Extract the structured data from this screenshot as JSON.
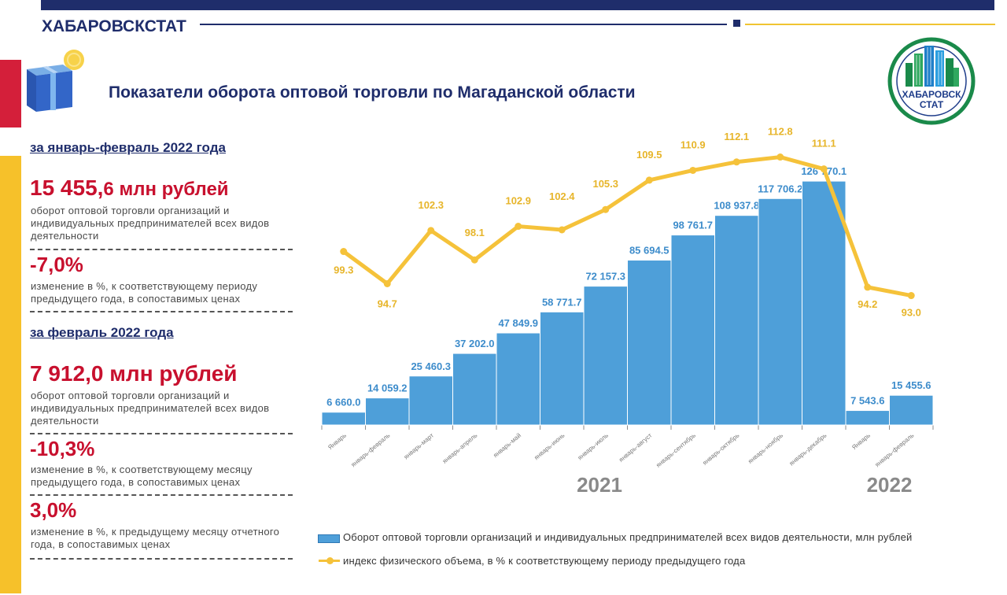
{
  "header": {
    "brand": "ХАБАРОВСКСТАТ",
    "title": "Показатели оборота оптовой торговли по Магаданской области",
    "logo_text_1": "ХАБАРОВСК",
    "logo_text_2": "СТАТ"
  },
  "left_panel": {
    "period1_label": "за январь-февраль 2022 года",
    "period1_value_main": "15 455,",
    "period1_value_tail": "6 млн рублей",
    "period1_desc": "оборот оптовой торговли организаций и индивидуальных предпринимателей всех видов деятельности",
    "period1_change": "-7,0%",
    "period1_change_desc": "изменение в %, к соответствующему периоду предыдущего года, в сопоставимых ценах",
    "period2_label": "за февраль 2022 года",
    "period2_value_main": "7 912,",
    "period2_value_tail": "0 млн рублей",
    "period2_desc": "оборот оптовой торговли организаций и индивидуальных предпринимателей всех видов деятельности",
    "period2_change": "-10,3%",
    "period2_change_desc": "изменение в %, к соответствующему месяцу предыдущего года, в сопоставимых ценах",
    "period2_change2": "3,0%",
    "period2_change2_desc": "изменение в %, к предыдущему месяцу отчетного года, в сопоставимых ценах"
  },
  "chart_data": {
    "type": "bar",
    "categories": [
      "Январь",
      "январь-февраль",
      "январь-март",
      "январь-апрель",
      "январь-май",
      "январь-июнь",
      "январь-июль",
      "январь-август",
      "январь-сентябрь",
      "январь-октябрь",
      "январь-ноябрь",
      "январь-декабрь",
      "Январь",
      "январь-февраль"
    ],
    "year_groups": [
      {
        "label": "2021",
        "count": 12
      },
      {
        "label": "2022",
        "count": 2
      }
    ],
    "series": [
      {
        "name": "Оборот оптовой торговли организаций и индивидуальных предпринимателей всех видов деятельности, млн рублей",
        "kind": "bar",
        "color": "#4e9fd9",
        "values": [
          6660.0,
          14059.2,
          25460.3,
          37202.0,
          47849.9,
          58771.7,
          72157.3,
          85694.5,
          98761.7,
          108937.8,
          117706.2,
          126770.1,
          7543.6,
          15455.6
        ],
        "labels": [
          "6 660.0",
          "14 059.2",
          "25 460.3",
          "37 202.0",
          "47 849.9",
          "58 771.7",
          "72 157.3",
          "85 694.5",
          "98 761.7",
          "108 937.8",
          "117 706.2",
          "126 770.1",
          "7 543.6",
          "15 455.6"
        ]
      },
      {
        "name": "индекс физического объема, в % к соответствующему периоду предыдущего года",
        "kind": "line",
        "color": "#f5c23a",
        "values": [
          99.3,
          94.7,
          102.3,
          98.1,
          102.9,
          102.4,
          105.3,
          109.5,
          110.9,
          112.1,
          112.8,
          111.1,
          94.2,
          93.0
        ],
        "labels": [
          "99.3",
          "94.7",
          "102.3",
          "98.1",
          "102.9",
          "102.4",
          "105.3",
          "109.5",
          "110.9",
          "112.1",
          "112.8",
          "111.1",
          "94.2",
          "93.0"
        ]
      }
    ],
    "bar_ylim": [
      0,
      135000
    ],
    "line_ylim": [
      88,
      115
    ],
    "legend_position": "bottom"
  }
}
